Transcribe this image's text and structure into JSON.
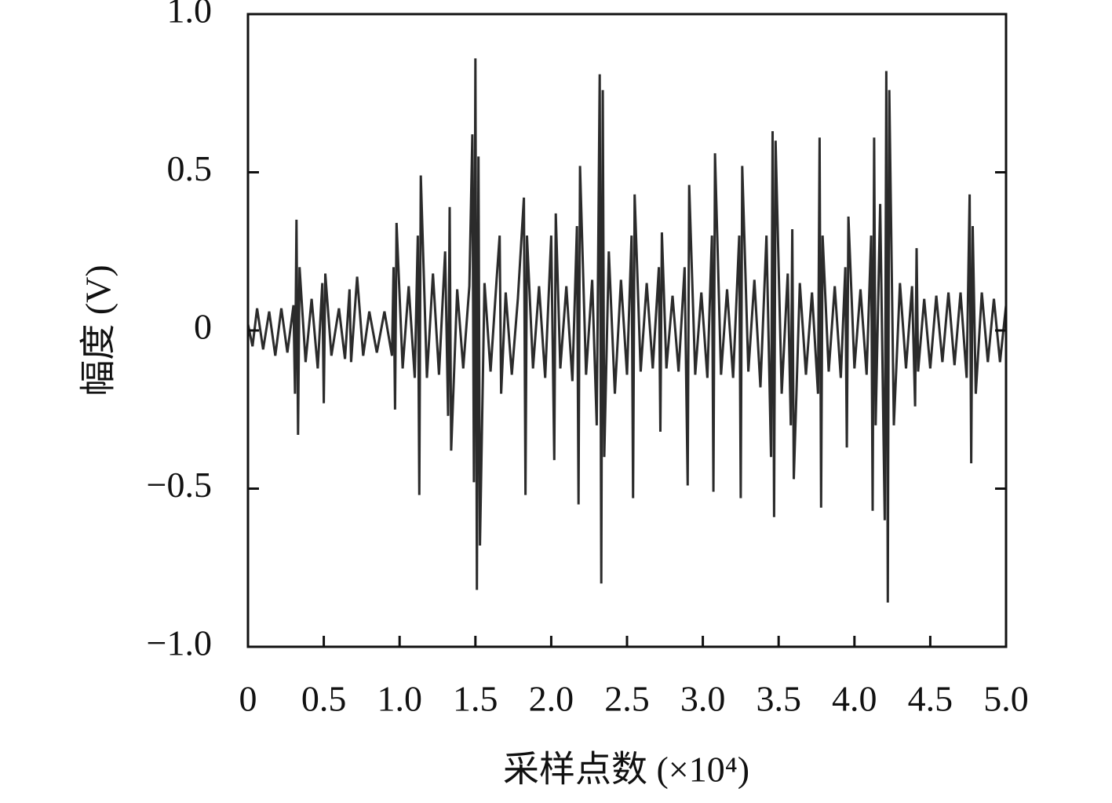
{
  "chart_data": {
    "type": "line",
    "xlabel": "采样点数 (×10⁴)",
    "ylabel": "幅度 (V)",
    "color": "#2b2b2b",
    "xlim": [
      0,
      5
    ],
    "ylim": [
      -1,
      1
    ],
    "xticks": [
      0,
      0.5,
      {
        "value": 1,
        "label": "1.0"
      },
      1.5,
      {
        "value": 2,
        "label": "2.0"
      },
      2.5,
      {
        "value": 3,
        "label": "3.0"
      },
      3.5,
      {
        "value": 4,
        "label": "4.0"
      },
      4.5,
      {
        "value": 5,
        "label": "5.0"
      }
    ],
    "yticks": [
      {
        "value": 1,
        "label": "1.0"
      },
      0.5,
      0,
      {
        "value": -0.5,
        "label": "−0.5"
      },
      {
        "value": -1,
        "label": "−1.0"
      }
    ],
    "x": [
      0,
      0.03,
      0.06,
      0.1,
      0.14,
      0.18,
      0.22,
      0.26,
      0.3,
      0.31,
      0.32,
      0.33,
      0.34,
      0.38,
      0.42,
      0.46,
      0.49,
      0.5,
      0.51,
      0.55,
      0.6,
      0.64,
      0.67,
      0.68,
      0.72,
      0.76,
      0.8,
      0.85,
      0.9,
      0.95,
      0.96,
      0.97,
      0.98,
      1.02,
      1.06,
      1.1,
      1.12,
      1.13,
      1.14,
      1.18,
      1.22,
      1.26,
      1.3,
      1.32,
      1.33,
      1.34,
      1.38,
      1.42,
      1.46,
      1.48,
      1.49,
      1.5,
      1.51,
      1.52,
      1.53,
      1.56,
      1.6,
      1.64,
      1.66,
      1.67,
      1.7,
      1.74,
      1.78,
      1.82,
      1.83,
      1.84,
      1.88,
      1.92,
      1.96,
      2.0,
      2.02,
      2.03,
      2.06,
      2.1,
      2.14,
      2.17,
      2.18,
      2.19,
      2.23,
      2.27,
      2.3,
      2.32,
      2.33,
      2.34,
      2.35,
      2.38,
      2.42,
      2.46,
      2.5,
      2.53,
      2.54,
      2.55,
      2.59,
      2.63,
      2.67,
      2.71,
      2.72,
      2.73,
      2.76,
      2.8,
      2.84,
      2.88,
      2.9,
      2.91,
      2.95,
      2.99,
      3.03,
      3.06,
      3.07,
      3.08,
      3.12,
      3.16,
      3.2,
      3.24,
      3.25,
      3.26,
      3.3,
      3.34,
      3.38,
      3.42,
      3.45,
      3.46,
      3.47,
      3.48,
      3.52,
      3.56,
      3.58,
      3.59,
      3.6,
      3.64,
      3.68,
      3.72,
      3.76,
      3.77,
      3.78,
      3.79,
      3.83,
      3.87,
      3.91,
      3.94,
      3.95,
      3.96,
      4.0,
      4.04,
      4.08,
      4.11,
      4.12,
      4.13,
      4.14,
      4.17,
      4.2,
      4.21,
      4.22,
      4.23,
      4.26,
      4.3,
      4.34,
      4.38,
      4.4,
      4.41,
      4.42,
      4.46,
      4.5,
      4.54,
      4.58,
      4.62,
      4.66,
      4.7,
      4.74,
      4.76,
      4.77,
      4.78,
      4.8,
      4.84,
      4.88,
      4.92,
      4.96,
      5.0
    ],
    "values": [
      0.02,
      -0.05,
      0.07,
      -0.06,
      0.06,
      -0.08,
      0.07,
      -0.07,
      0.08,
      -0.2,
      0.35,
      -0.33,
      0.2,
      -0.1,
      0.1,
      -0.12,
      0.15,
      -0.23,
      0.18,
      -0.08,
      0.07,
      -0.09,
      0.13,
      -0.1,
      0.17,
      -0.08,
      0.06,
      -0.07,
      0.06,
      -0.08,
      0.2,
      -0.25,
      0.34,
      -0.12,
      0.14,
      -0.15,
      0.3,
      -0.52,
      0.49,
      -0.15,
      0.18,
      -0.14,
      0.25,
      -0.27,
      0.39,
      -0.38,
      0.13,
      -0.12,
      0.14,
      0.62,
      -0.48,
      0.86,
      -0.82,
      0.55,
      -0.68,
      0.15,
      -0.13,
      0.16,
      0.3,
      -0.2,
      0.12,
      -0.14,
      0.1,
      0.42,
      -0.52,
      0.3,
      -0.12,
      0.14,
      -0.15,
      0.3,
      -0.41,
      0.37,
      -0.12,
      0.14,
      -0.16,
      0.33,
      -0.55,
      0.52,
      -0.14,
      0.16,
      -0.3,
      0.81,
      -0.8,
      0.76,
      -0.4,
      0.25,
      -0.2,
      0.16,
      -0.14,
      0.3,
      -0.53,
      0.43,
      -0.13,
      0.15,
      -0.12,
      0.2,
      -0.32,
      0.31,
      -0.12,
      0.11,
      -0.13,
      0.2,
      -0.49,
      0.46,
      -0.14,
      0.12,
      -0.15,
      0.3,
      -0.51,
      0.56,
      -0.14,
      0.13,
      -0.15,
      0.3,
      -0.53,
      0.52,
      -0.13,
      0.16,
      -0.18,
      0.3,
      -0.4,
      0.63,
      -0.59,
      0.6,
      -0.2,
      0.18,
      -0.3,
      0.32,
      -0.47,
      0.15,
      -0.14,
      0.12,
      -0.2,
      0.61,
      -0.56,
      0.3,
      -0.13,
      0.14,
      -0.15,
      0.2,
      -0.37,
      0.36,
      -0.12,
      0.13,
      -0.14,
      0.3,
      -0.57,
      0.61,
      -0.3,
      0.4,
      -0.6,
      0.82,
      -0.86,
      0.76,
      -0.3,
      0.15,
      -0.12,
      0.14,
      -0.24,
      0.26,
      -0.13,
      0.1,
      -0.12,
      0.11,
      -0.1,
      0.12,
      -0.11,
      0.12,
      -0.15,
      0.43,
      -0.42,
      0.33,
      -0.2,
      0.12,
      -0.1,
      0.1,
      -0.1,
      0.08
    ]
  }
}
